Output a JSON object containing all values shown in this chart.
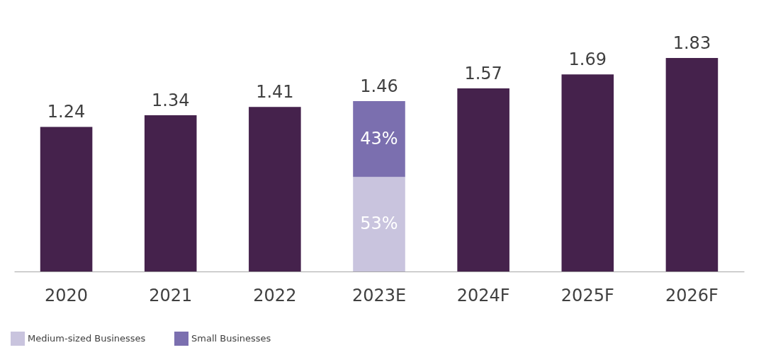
{
  "chart_data": {
    "type": "bar",
    "stacked": true,
    "categories": [
      "2020",
      "2021",
      "2022",
      "2023E",
      "2024F",
      "2025F",
      "2026F"
    ],
    "series": [
      {
        "color": "#45224c",
        "values": [
          1.24,
          1.34,
          1.41,
          null,
          1.57,
          1.69,
          1.83
        ],
        "value_labels": [
          "1.24",
          "1.34",
          "1.41",
          null,
          "1.57",
          "1.69",
          "1.83"
        ]
      },
      {
        "name": "Medium-sized Businesses",
        "color": "#c9c4de",
        "values": [
          null,
          null,
          null,
          0.81,
          null,
          null,
          null
        ]
      },
      {
        "name": "Small Businesses",
        "color": "#7b6faf",
        "values": [
          null,
          null,
          null,
          0.65,
          null,
          null,
          null
        ]
      }
    ],
    "totals": [
      null,
      null,
      null,
      "1.46",
      null,
      null,
      null
    ],
    "annotations": [
      "53%",
      "43%"
    ],
    "legend": "bottom left",
    "grid": false
  }
}
